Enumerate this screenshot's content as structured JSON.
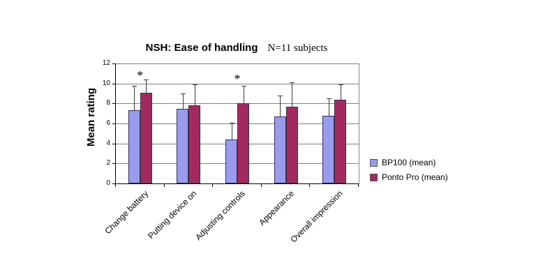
{
  "chart_data": {
    "type": "bar",
    "title": "NSH: Ease of handling",
    "subtitle": "N=11 subjects",
    "ylabel": "Mean rating",
    "xlabel": "",
    "ylim": [
      0,
      12
    ],
    "yticks": [
      0,
      2,
      4,
      6,
      8,
      10,
      12
    ],
    "grid": true,
    "legend_position": "right",
    "categories": [
      "Change battery",
      "Putting device on",
      "Adjusting controls",
      "Appearance",
      "Overall impression"
    ],
    "series": [
      {
        "name": "BP100 (mean)",
        "color": "#9a9aee",
        "values": [
          7.3,
          7.5,
          4.4,
          6.7,
          6.8
        ],
        "error_upper": [
          9.8,
          9.0,
          6.1,
          8.8,
          8.5
        ]
      },
      {
        "name": "Ponto Pro (mean)",
        "color": "#a32a60",
        "values": [
          9.1,
          7.8,
          8.0,
          7.7,
          8.4
        ],
        "error_upper": [
          10.4,
          9.9,
          9.8,
          10.1,
          9.9
        ]
      }
    ],
    "annotations": [
      {
        "text": "*",
        "category_index": 0,
        "y": 10.8
      },
      {
        "text": "*",
        "category_index": 2,
        "y": 10.5
      }
    ]
  }
}
